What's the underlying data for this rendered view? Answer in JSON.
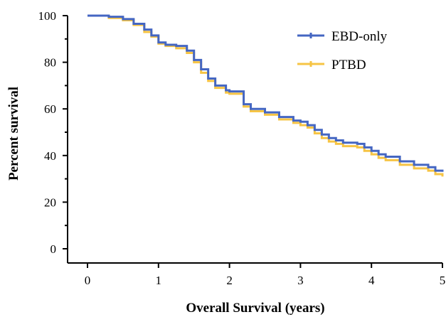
{
  "chart_data": {
    "type": "line",
    "title": "",
    "xlabel": "Overall Survival (years)",
    "ylabel": "Percent survival",
    "xlim": [
      0,
      5
    ],
    "ylim": [
      0,
      100
    ],
    "xticks": [
      0,
      1,
      2,
      3,
      4,
      5
    ],
    "yticks": [
      0,
      20,
      40,
      60,
      80,
      100
    ],
    "grid": false,
    "legend_position": "top-right",
    "series": [
      {
        "name": "EBD-only",
        "color": "#4466c2",
        "step": true,
        "x": [
          0,
          0.3,
          0.5,
          0.65,
          0.8,
          0.9,
          1.0,
          1.1,
          1.25,
          1.4,
          1.5,
          1.6,
          1.7,
          1.8,
          1.95,
          2.0,
          2.1,
          2.2,
          2.3,
          2.5,
          2.7,
          2.9,
          3.0,
          3.1,
          3.2,
          3.3,
          3.4,
          3.5,
          3.6,
          3.8,
          3.9,
          4.0,
          4.1,
          4.2,
          4.4,
          4.6,
          4.8,
          4.9,
          5.0
        ],
        "y": [
          100,
          99.5,
          98.5,
          96.5,
          94,
          91.5,
          88.5,
          87.5,
          87,
          85,
          81,
          77,
          73,
          70,
          68,
          67.5,
          67.5,
          62,
          60,
          58.5,
          56.5,
          55,
          54.5,
          53,
          51,
          49,
          47.5,
          46.5,
          45.5,
          45,
          43.5,
          42,
          40.5,
          39.5,
          37.5,
          36,
          35,
          33.5,
          33
        ]
      },
      {
        "name": "PTBD",
        "color": "#f6c444",
        "step": true,
        "x": [
          0,
          0.3,
          0.5,
          0.65,
          0.8,
          0.9,
          1.0,
          1.1,
          1.25,
          1.4,
          1.5,
          1.6,
          1.7,
          1.8,
          1.95,
          2.0,
          2.1,
          2.2,
          2.3,
          2.5,
          2.7,
          2.9,
          3.0,
          3.1,
          3.2,
          3.3,
          3.4,
          3.5,
          3.6,
          3.8,
          3.9,
          4.0,
          4.1,
          4.2,
          4.4,
          4.6,
          4.8,
          4.9,
          5.0
        ],
        "y": [
          100,
          99,
          98,
          96,
          93,
          91,
          88,
          87,
          86,
          84,
          80,
          75.5,
          72,
          69,
          67,
          66.5,
          66.5,
          61,
          59,
          57.5,
          55.5,
          54,
          53,
          52,
          49.5,
          47.5,
          46,
          45,
          44,
          43.5,
          42,
          40.5,
          39,
          38,
          36,
          34.5,
          33.5,
          32,
          31
        ]
      }
    ]
  }
}
